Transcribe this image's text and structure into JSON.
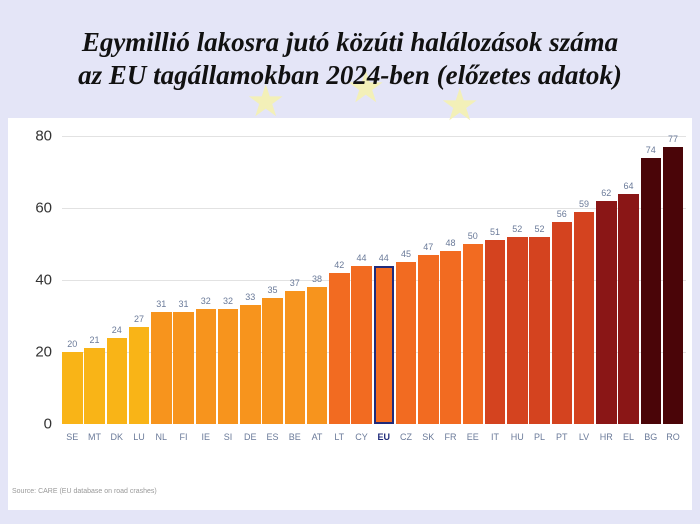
{
  "title": {
    "line1": "Egymillió lakosra jutó közúti halálozások száma",
    "line2": "az EU tagállamokban 2024-ben (előzetes adatok)"
  },
  "source": "Source: CARE (EU database on road crashes)",
  "y_ticks": [
    "0",
    "20",
    "40",
    "60",
    "80"
  ],
  "colors": {
    "yellow": "#F9B417",
    "orange": "#F7941D",
    "orange_red": "#F26B21",
    "red": "#D4431F",
    "dark_red": "#8A1616",
    "darkest_red": "#4A0508",
    "eu_outline": "#1F2A7A",
    "background": "#E4E5F7"
  },
  "chart_data": {
    "type": "bar",
    "title": "Egymillió lakosra jutó közúti halálozások száma az EU tagállamokban 2024-ben (előzetes adatok)",
    "xlabel": "",
    "ylabel": "",
    "ylim": [
      0,
      80
    ],
    "yticks": [
      0,
      20,
      40,
      60,
      80
    ],
    "grid": true,
    "categories": [
      "SE",
      "MT",
      "DK",
      "LU",
      "NL",
      "FI",
      "IE",
      "SI",
      "DE",
      "ES",
      "BE",
      "AT",
      "LT",
      "CY",
      "EU",
      "CZ",
      "SK",
      "FR",
      "EE",
      "IT",
      "HU",
      "PL",
      "PT",
      "LV",
      "HR",
      "EL",
      "BG",
      "RO"
    ],
    "values": [
      20,
      21,
      24,
      27,
      31,
      31,
      32,
      32,
      33,
      35,
      37,
      38,
      42,
      44,
      44,
      45,
      47,
      48,
      50,
      51,
      52,
      52,
      56,
      59,
      62,
      64,
      74,
      77
    ],
    "highlight": "EU",
    "source": "Source: CARE (EU database on road crashes)"
  }
}
